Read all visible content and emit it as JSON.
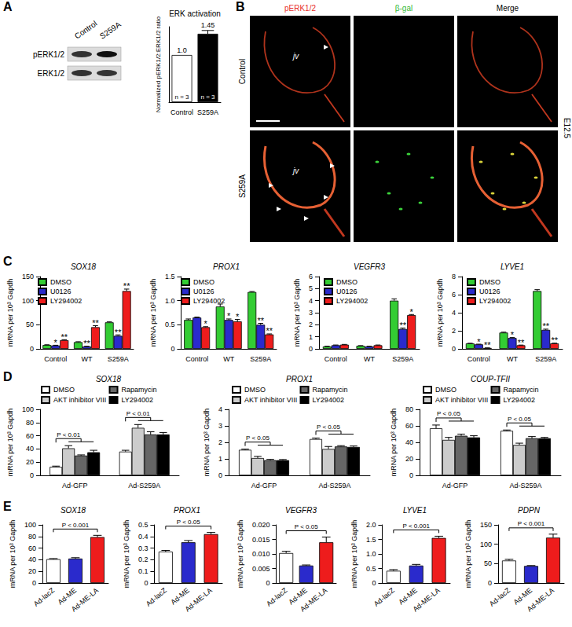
{
  "panels": [
    "A",
    "B",
    "C",
    "D",
    "E"
  ],
  "blot": {
    "lanes": [
      "Control",
      "S259A"
    ],
    "rows": [
      "pERK1/2",
      "ERK1/2"
    ]
  },
  "micrographs": {
    "columns": [
      "pERK1/2",
      "β-gal",
      "Merge"
    ],
    "rows": [
      "Control",
      "S259A"
    ],
    "stage": "E12.5",
    "annotation": "jv"
  },
  "chart_data": [
    {
      "type": "bar",
      "title": "ERK activation",
      "y_label": "Normalized pERK1/2:ERK1/2 ratio",
      "categories": [
        "Control",
        "S259A"
      ],
      "values": [
        1.0,
        1.45
      ],
      "value_labels": [
        "1.0",
        "1.45"
      ],
      "errors": [
        0,
        0.07
      ],
      "n_labels": [
        "n = 3",
        "n = 3"
      ],
      "colors": [
        "#ffffff",
        "#000000"
      ],
      "ylim": [
        0,
        1.6
      ],
      "tick_labels": "x",
      "data_labels": true,
      "grid": false
    },
    {
      "type": "bar",
      "title": "SOX18",
      "y_label": "mRNA per 10³ Gapdh",
      "categories": [
        "Control",
        "WT",
        "S259A"
      ],
      "series": [
        {
          "name": "DMSO",
          "color": "#33cc33",
          "values": [
            8,
            14,
            55
          ],
          "errors": [
            0.5,
            0.8,
            1
          ],
          "marks": [
            null,
            null,
            null
          ]
        },
        {
          "name": "U0126",
          "color": "#2a2acc",
          "values": [
            7,
            5,
            27
          ],
          "errors": [
            0.5,
            0.5,
            2
          ],
          "marks": [
            "*",
            "**",
            "**"
          ]
        },
        {
          "name": "LY294002",
          "color": "#ee1c1c",
          "values": [
            18,
            45,
            120
          ],
          "errors": [
            1,
            3,
            4
          ],
          "marks": [
            "**",
            "**",
            "**"
          ]
        }
      ],
      "ylim": [
        0,
        150
      ],
      "yticks": [
        0,
        50,
        100,
        150
      ],
      "legend": "upper left",
      "grid": false
    },
    {
      "type": "bar",
      "title": "PROX1",
      "y_label": "mRNA per 10³ Gapdh",
      "categories": [
        "Control",
        "WT",
        "S259A"
      ],
      "series": [
        {
          "name": "DMSO",
          "color": "#33cc33",
          "values": [
            0.6,
            0.88,
            1.18
          ],
          "errors": [
            0.02,
            0.05,
            0.01
          ],
          "marks": [
            null,
            null,
            null
          ]
        },
        {
          "name": "U0126",
          "color": "#2a2acc",
          "values": [
            0.65,
            0.6,
            0.5
          ],
          "errors": [
            0.01,
            0.02,
            0.03
          ],
          "marks": [
            null,
            "*",
            "**"
          ]
        },
        {
          "name": "LY294002",
          "color": "#ee1c1c",
          "values": [
            0.45,
            0.57,
            0.3
          ],
          "errors": [
            0.01,
            0.04,
            0.01
          ],
          "marks": [
            "*",
            "*",
            "**"
          ]
        }
      ],
      "ylim": [
        0,
        1.5
      ],
      "yticks": [
        0,
        0.5,
        {
          "value": 1,
          "label": "1.0"
        },
        1.5
      ],
      "legend": "upper left",
      "grid": false
    },
    {
      "type": "bar",
      "title": "VEGFR3",
      "y_label": "mRNA per 10³ Gapdh",
      "categories": [
        "Control",
        "WT",
        "S259A"
      ],
      "series": [
        {
          "name": "DMSO",
          "color": "#33cc33",
          "values": [
            0.2,
            0.25,
            4.0
          ],
          "errors": [
            0.02,
            0.02,
            0.15
          ],
          "marks": [
            null,
            null,
            null
          ]
        },
        {
          "name": "U0126",
          "color": "#2a2acc",
          "values": [
            0.3,
            0.2,
            1.65
          ],
          "errors": [
            0.02,
            0.02,
            0.08
          ],
          "marks": [
            null,
            null,
            "**"
          ]
        },
        {
          "name": "LY294002",
          "color": "#ee1c1c",
          "values": [
            0.35,
            0.3,
            2.8
          ],
          "errors": [
            0.02,
            0.02,
            0.05
          ],
          "marks": [
            null,
            null,
            "*"
          ]
        }
      ],
      "ylim": [
        0,
        6
      ],
      "yticks": [
        0,
        1,
        2,
        3,
        4,
        5,
        6
      ],
      "legend": "upper left",
      "grid": false
    },
    {
      "type": "bar",
      "title": "LYVE1",
      "y_label": "mRNA per 10³ Gapdh",
      "categories": [
        "Control",
        "WT",
        "S259A"
      ],
      "series": [
        {
          "name": "DMSO",
          "color": "#33cc33",
          "values": [
            0.6,
            1.8,
            6.4
          ],
          "errors": [
            0.02,
            0.05,
            0.15
          ],
          "marks": [
            null,
            null,
            null
          ]
        },
        {
          "name": "U0126",
          "color": "#2a2acc",
          "values": [
            0.5,
            1.2,
            2.1
          ],
          "errors": [
            0.02,
            0.05,
            0.08
          ],
          "marks": [
            "*",
            "*",
            "**"
          ]
        },
        {
          "name": "LY294002",
          "color": "#ee1c1c",
          "values": [
            0.1,
            0.4,
            0.6
          ],
          "errors": [
            0.01,
            0.02,
            0.03
          ],
          "marks": [
            "**",
            "**",
            "**"
          ]
        }
      ],
      "ylim": [
        0,
        8
      ],
      "yticks": [
        0,
        2,
        4,
        6,
        8
      ],
      "legend": "upper left",
      "grid": false
    },
    {
      "type": "bar",
      "title": "SOX18",
      "y_label": "mRNA per 10³ Gapdh",
      "categories": [
        "Ad-GFP",
        "Ad-S259A"
      ],
      "series": [
        {
          "name": "DMSO",
          "color": "#ffffff",
          "values": [
            13,
            36
          ],
          "errors": [
            1,
            2
          ]
        },
        {
          "name": "AKT inhibitor VIII",
          "color": "#cccccc",
          "values": [
            41,
            72
          ],
          "errors": [
            4,
            5
          ]
        },
        {
          "name": "Rapamycin",
          "color": "#666666",
          "values": [
            30,
            62
          ],
          "errors": [
            1,
            4
          ]
        },
        {
          "name": "LY294002",
          "color": "#000000",
          "values": [
            35,
            62
          ],
          "errors": [
            3,
            3
          ]
        }
      ],
      "brackets": [
        {
          "category": 0,
          "from": 0,
          "to": 3,
          "label": "P < 0.01"
        },
        {
          "category": 1,
          "from": 0,
          "to": 3,
          "label": "P < 0.01"
        }
      ],
      "ylim": [
        0,
        100
      ],
      "yticks": [
        0,
        20,
        40,
        60,
        80,
        100
      ],
      "legend": "top",
      "grid": false
    },
    {
      "type": "bar",
      "title": "PROX1",
      "y_label": "mRNA per 10³ Gapdh",
      "categories": [
        "Ad-GFP",
        "Ad-S259A"
      ],
      "series": [
        {
          "name": "DMSO",
          "color": "#ffffff",
          "values": [
            1.55,
            2.2
          ],
          "errors": [
            0.04,
            0.06
          ]
        },
        {
          "name": "AKT inhibitor VIII",
          "color": "#cccccc",
          "values": [
            1.05,
            1.6
          ],
          "errors": [
            0.1,
            0.15
          ]
        },
        {
          "name": "Rapamycin",
          "color": "#666666",
          "values": [
            0.92,
            1.75
          ],
          "errors": [
            0.05,
            0.05
          ]
        },
        {
          "name": "LY294002",
          "color": "#000000",
          "values": [
            0.92,
            1.72
          ],
          "errors": [
            0.04,
            0.06
          ]
        }
      ],
      "brackets": [
        {
          "category": 0,
          "from": 0,
          "to": 3,
          "label": "P < 0.05"
        },
        {
          "category": 1,
          "from": 0,
          "to": 3,
          "label": "P < 0.05"
        }
      ],
      "ylim": [
        0,
        4
      ],
      "yticks": [
        0,
        1,
        2,
        3,
        4
      ],
      "legend": "top",
      "grid": false
    },
    {
      "type": "bar",
      "title": "COUP-TFII",
      "y_label": "mRNA per 10³ Gapdh",
      "categories": [
        "Ad-GFP",
        "Ad-S259A"
      ],
      "series": [
        {
          "name": "DMSO",
          "color": "#ffffff",
          "values": [
            57,
            54
          ],
          "errors": [
            4,
            1
          ]
        },
        {
          "name": "AKT inhibitor VIII",
          "color": "#cccccc",
          "values": [
            43,
            37
          ],
          "errors": [
            3,
            2
          ]
        },
        {
          "name": "Rapamycin",
          "color": "#666666",
          "values": [
            48,
            45
          ],
          "errors": [
            2,
            2
          ]
        },
        {
          "name": "LY294002",
          "color": "#000000",
          "values": [
            46,
            45
          ],
          "errors": [
            2,
            1
          ]
        }
      ],
      "brackets": [
        {
          "category": 0,
          "from": 0,
          "to": 3,
          "label": "P < 0.05"
        },
        {
          "category": 1,
          "from": 0,
          "to": 3,
          "label": "P < 0.05"
        }
      ],
      "ylim": [
        0,
        80
      ],
      "yticks": [
        0,
        20,
        40,
        60,
        80
      ],
      "legend": "top",
      "grid": false
    },
    {
      "type": "bar",
      "title": "SOX18",
      "y_label": "mRNA per 10³ Gapdh",
      "categories": [
        "Ad-lacZ",
        "Ad-ME",
        "Ad-ME-LA"
      ],
      "values": [
        41,
        42,
        79
      ],
      "errors": [
        1,
        1.5,
        3
      ],
      "colors": [
        "#ffffff",
        "#2a2acc",
        "#ee1c1c"
      ],
      "brackets": [
        {
          "from": 0,
          "to": 2,
          "label": "P < 0.001"
        }
      ],
      "ylim": [
        0,
        100
      ],
      "yticks": [
        0,
        20,
        40,
        60,
        80,
        100
      ],
      "grid": false
    },
    {
      "type": "bar",
      "title": "PROX1",
      "y_label": "mRNA per 10³ Gapdh",
      "categories": [
        "Ad-lacZ",
        "Ad-ME",
        "Ad-ME-LA"
      ],
      "values": [
        0.27,
        0.35,
        0.42
      ],
      "errors": [
        0.01,
        0.015,
        0.015
      ],
      "colors": [
        "#ffffff",
        "#2a2acc",
        "#ee1c1c"
      ],
      "brackets": [
        {
          "from": 0,
          "to": 2,
          "label": "P < 0.05"
        }
      ],
      "ylim": [
        0,
        0.5
      ],
      "yticks": [
        0,
        0.1,
        0.2,
        0.3,
        0.4,
        0.5
      ],
      "grid": false
    },
    {
      "type": "bar",
      "title": "VEGFR3",
      "y_label": "mRNA per 10³ Gapdh",
      "categories": [
        "Ad-lacZ",
        "Ad-ME",
        "Ad-ME-LA"
      ],
      "values": [
        0.0103,
        0.006,
        0.014
      ],
      "errors": [
        0.0006,
        0.0002,
        0.0018
      ],
      "colors": [
        "#ffffff",
        "#2a2acc",
        "#ee1c1c"
      ],
      "brackets": [
        {
          "from": 0,
          "to": 2,
          "label": "P < 0.05"
        }
      ],
      "ylim": [
        0,
        0.02
      ],
      "yticks": [
        0,
        0.005,
        {
          "value": 0.01,
          "label": "0.010"
        },
        0.015,
        {
          "value": 0.02,
          "label": "0.020"
        }
      ],
      "grid": false
    },
    {
      "type": "bar",
      "title": "LYVE1",
      "y_label": "mRNA per 10³ Gapdh",
      "categories": [
        "Ad-lacZ",
        "Ad-ME",
        "Ad-ME-LA"
      ],
      "values": [
        0.42,
        0.6,
        1.55
      ],
      "errors": [
        0.04,
        0.04,
        0.06
      ],
      "colors": [
        "#ffffff",
        "#2a2acc",
        "#ee1c1c"
      ],
      "brackets": [
        {
          "from": 0,
          "to": 2,
          "label": "P < 0.001"
        }
      ],
      "ylim": [
        0,
        2
      ],
      "yticks": [
        0,
        0.5,
        {
          "value": 1,
          "label": "1.0"
        },
        1.5,
        {
          "value": 2,
          "label": "2.0"
        }
      ],
      "grid": false
    },
    {
      "type": "bar",
      "title": "PDPN",
      "y_label": "mRNA per 10³ Gapdh",
      "categories": [
        "Ad-lacZ",
        "Ad-ME",
        "Ad-ME-LA"
      ],
      "values": [
        58,
        44,
        117
      ],
      "errors": [
        3,
        1,
        9
      ],
      "colors": [
        "#ffffff",
        "#2a2acc",
        "#ee1c1c"
      ],
      "brackets": [
        {
          "from": 0,
          "to": 2,
          "label": "P < 0.001"
        }
      ],
      "ylim": [
        0,
        150
      ],
      "yticks": [
        0,
        50,
        100,
        150
      ],
      "grid": false
    }
  ]
}
